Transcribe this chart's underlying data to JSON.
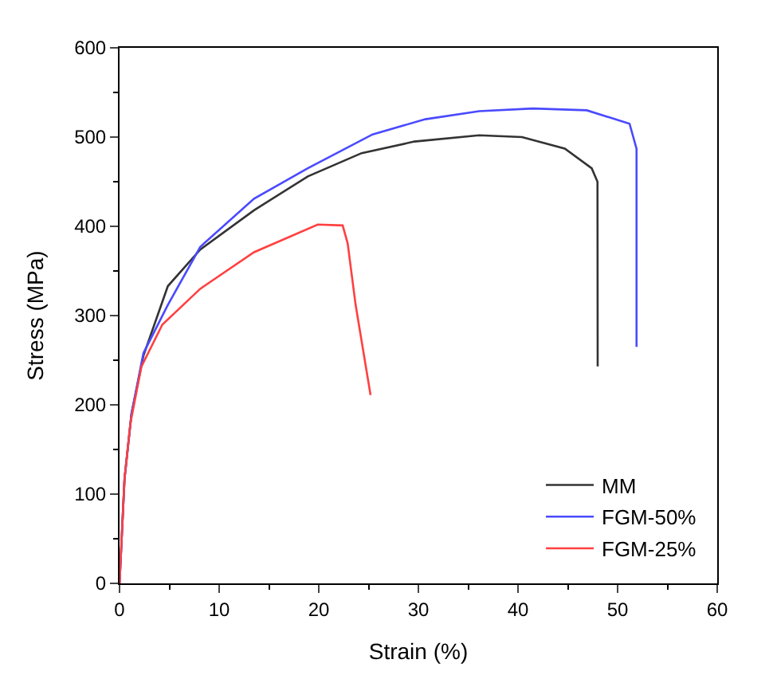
{
  "chart_data": {
    "type": "line",
    "xlabel": "Strain (%)",
    "ylabel": "Stress (MPa)",
    "xlim": [
      0,
      60
    ],
    "xticks": [
      0,
      10,
      20,
      30,
      40,
      50,
      60
    ],
    "ylim": [
      0,
      600
    ],
    "yticks": [
      0,
      100,
      200,
      300,
      400,
      500,
      600
    ],
    "legend": "bottom right",
    "marker": "none",
    "line_style": "solid",
    "series": [
      {
        "name": "MM",
        "color": "#333333",
        "x": [
          0,
          0.5,
          1.2,
          2.4,
          4.85,
          8.1,
          13.5,
          18.9,
          24.3,
          29.6,
          36.1,
          40.4,
          44.7,
          47.4,
          47.98,
          48
        ],
        "values": [
          0,
          117,
          190,
          255,
          333,
          374,
          418,
          456,
          482,
          495,
          502,
          500,
          487,
          465,
          450,
          243
        ]
      },
      {
        "name": "FGM-50%",
        "color": "#4a4aff",
        "x": [
          0,
          0.5,
          1.2,
          2.4,
          4.85,
          8.1,
          13.5,
          18.9,
          25.4,
          30.7,
          36.1,
          41.5,
          46.9,
          51.2,
          51.9,
          51.9
        ],
        "values": [
          0,
          117,
          190,
          258,
          312,
          377,
          431,
          465,
          503,
          520,
          529,
          532,
          530,
          515,
          487,
          265
        ]
      },
      {
        "name": "FGM-25%",
        "color": "#ff4040",
        "x": [
          0,
          0.5,
          1.1,
          2.2,
          4.3,
          8.1,
          13.5,
          19.9,
          22.4,
          22.9,
          23.7,
          25.2
        ],
        "values": [
          0,
          117,
          180,
          243,
          290,
          330,
          371,
          402,
          401,
          381,
          312,
          211
        ]
      }
    ]
  }
}
